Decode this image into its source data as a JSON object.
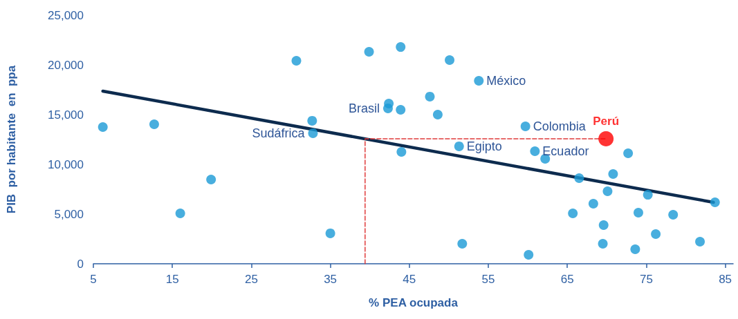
{
  "chart_data": {
    "type": "scatter",
    "xlabel": "% PEA ocupada",
    "ylabel": "PIB  por habitante  en  ppa",
    "xlim": [
      5,
      86
    ],
    "xticks": [
      5,
      15,
      25,
      35,
      45,
      55,
      65,
      75,
      85
    ],
    "ylim": [
      0,
      25000
    ],
    "yticks": [
      {
        "value": 0,
        "label": "0"
      },
      {
        "value": 5000,
        "label": "5,000"
      },
      {
        "value": 10000,
        "label": "10,000"
      },
      {
        "value": 15000,
        "label": "15,000"
      },
      {
        "value": 20000,
        "label": "20,000"
      },
      {
        "value": 25000,
        "label": "25,000"
      }
    ],
    "grid": false,
    "legend": false,
    "marker": "circle",
    "series": [
      {
        "type": "line",
        "marker": "none",
        "color": "#0d2b4e",
        "line_style": "solid",
        "x": [
          6.2,
          83.5
        ],
        "values": [
          17360,
          6180
        ]
      },
      {
        "type": "line",
        "marker": "none",
        "color": "#e03a3a",
        "line_style": "dashed",
        "x": [
          39.4,
          39.4,
          69.9
        ],
        "values": [
          0,
          12570,
          12570
        ]
      },
      {
        "color": "#1a9ad6",
        "x": [
          6.2,
          12.7,
          16.0,
          19.9,
          30.7,
          32.7,
          32.8,
          35.0,
          39.9,
          43.9,
          42.4,
          42.3,
          43.9,
          44.0,
          50.1,
          53.8,
          47.6,
          48.6,
          59.7,
          51.3,
          60.9,
          62.2,
          72.7,
          66.5,
          70.8,
          70.1,
          75.2,
          83.7,
          68.3,
          65.7,
          74.0,
          78.4,
          69.6,
          76.2,
          51.7,
          69.5,
          73.6,
          81.8,
          60.1
        ],
        "values": [
          13750,
          14030,
          5070,
          8470,
          20420,
          14380,
          13130,
          3060,
          21320,
          21800,
          16110,
          15630,
          15490,
          11250,
          20490,
          18400,
          16810,
          15000,
          13820,
          11810,
          11320,
          10560,
          11110,
          8610,
          9030,
          7290,
          6940,
          6180,
          6040,
          5070,
          5140,
          4930,
          3890,
          2990,
          2010,
          2010,
          1460,
          2220,
          900
        ]
      },
      {
        "name": "Perú",
        "color": "#ff0000",
        "x": [
          69.9
        ],
        "values": [
          12570
        ]
      }
    ],
    "annotations": [
      {
        "text": "México",
        "x": 53.8,
        "y": 18400
      },
      {
        "text": "Colombia",
        "x": 59.7,
        "y": 13820
      },
      {
        "text": "Brasil",
        "x": 42.3,
        "y": 15630
      },
      {
        "text": "Sudáfrica",
        "x": 32.8,
        "y": 13130
      },
      {
        "text": "Egipto",
        "x": 51.3,
        "y": 11810
      },
      {
        "text": "Ecuador",
        "x": 60.9,
        "y": 11320
      }
    ]
  }
}
